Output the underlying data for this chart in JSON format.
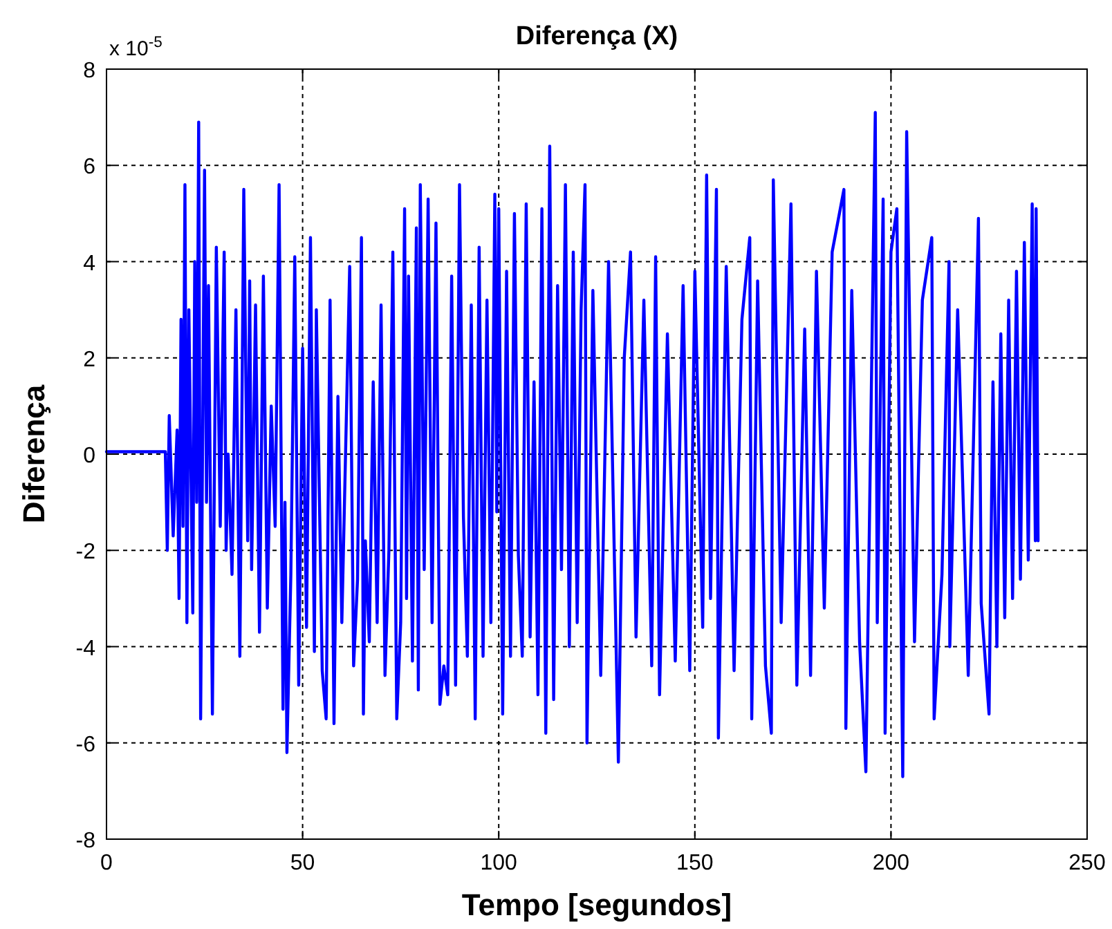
{
  "chart_data": {
    "type": "line",
    "title": "Diferença (X)",
    "xlabel": "Tempo [segundos]",
    "ylabel": "Diferença",
    "annotations": [
      "x 10$^{-5}$"
    ],
    "xlim": [
      0,
      250
    ],
    "xticks": [
      0,
      50,
      100,
      150,
      200,
      250
    ],
    "ylim": [
      -8,
      8
    ],
    "yticks": [
      -8,
      -6,
      -4,
      -2,
      0,
      2,
      4,
      6,
      8
    ],
    "grid": true,
    "marker": "none",
    "line_style": "solid",
    "series": [
      {
        "color": "#0000ff",
        "x": [
          0,
          15,
          15.5,
          16,
          17,
          18,
          18.5,
          19,
          19.5,
          20,
          20.5,
          21,
          22,
          22.5,
          23,
          23.5,
          24,
          25,
          25.5,
          26,
          27,
          28,
          29,
          30,
          30.5,
          31,
          32,
          33,
          34,
          35,
          36,
          36.5,
          37,
          38,
          39,
          40,
          41,
          42,
          43,
          44,
          45,
          45.5,
          46,
          47,
          48,
          49,
          50,
          51,
          52,
          53,
          53.5,
          55,
          56,
          57,
          58,
          59,
          60,
          61,
          62,
          63,
          64,
          65,
          65.5,
          66,
          67,
          68,
          69,
          70,
          71,
          72,
          73,
          73.5,
          74,
          75,
          76,
          76.5,
          77,
          78,
          79,
          79.5,
          80,
          81,
          82,
          83,
          84,
          85,
          86,
          87,
          88,
          89,
          90,
          91,
          92,
          93,
          94,
          95,
          96,
          97,
          98,
          99,
          99.5,
          100,
          101,
          102,
          103,
          104,
          105,
          106,
          107,
          108,
          109,
          110,
          111,
          112,
          113,
          114,
          115,
          116,
          117,
          118,
          119,
          120,
          121,
          122,
          122.5,
          124,
          126,
          128,
          130.5,
          132,
          133.6,
          135,
          137,
          139,
          140,
          141,
          143,
          145,
          147,
          148.7,
          150,
          152,
          153,
          154,
          155.5,
          156,
          158,
          160,
          162,
          164,
          164.5,
          166,
          168,
          169.5,
          170,
          172,
          174.5,
          176,
          178,
          179.5,
          181,
          183,
          185,
          188,
          188.5,
          190,
          192,
          193.6,
          196,
          196.5,
          198,
          198.5,
          200,
          201.5,
          203,
          204,
          206,
          208,
          210.4,
          211,
          213,
          214.8,
          215,
          217,
          219.7,
          222.3,
          223,
          225,
          226,
          227,
          228,
          229,
          230,
          231,
          232,
          233,
          234,
          235,
          236,
          236.8,
          237,
          237.5
        ],
        "values": [
          0.05,
          0.05,
          -2,
          0.8,
          -1.7,
          0.5,
          -3,
          2.8,
          -1.5,
          5.6,
          -3.5,
          3,
          -3.3,
          4,
          -1,
          6.9,
          -5.5,
          5.9,
          -1,
          3.5,
          -5.4,
          4.3,
          -1.5,
          4.2,
          -2,
          0,
          -2.5,
          3,
          -4.2,
          5.5,
          -1.8,
          3.6,
          -2.4,
          3.1,
          -3.7,
          3.7,
          -3.2,
          1,
          -1.5,
          5.6,
          -5.3,
          -1,
          -6.2,
          -2.5,
          4.1,
          -4.8,
          2.2,
          -3.6,
          4.5,
          -4.1,
          3,
          -4.5,
          -5.5,
          3.2,
          -5.6,
          1.2,
          -3.5,
          0.2,
          3.9,
          -4.4,
          -2.6,
          4.5,
          -5.4,
          -1.8,
          -3.9,
          1.5,
          -3.5,
          3.1,
          -4.6,
          -2,
          4.2,
          -1,
          -5.5,
          -3.5,
          5.1,
          -3,
          3.7,
          -4.3,
          4.7,
          -4.9,
          5.6,
          -2.4,
          5.3,
          -3.5,
          4.8,
          -5.2,
          -4.4,
          -5,
          3.7,
          -4.8,
          5.6,
          -1.3,
          -4.2,
          3.1,
          -5.5,
          4.3,
          -4.2,
          3.2,
          -3.5,
          5.4,
          -1.2,
          5.1,
          -5.4,
          3.8,
          -4.2,
          5,
          -2.1,
          -4.2,
          5.2,
          -3.8,
          1.5,
          -5,
          5.1,
          -5.8,
          6.4,
          -5.1,
          3.5,
          -2.4,
          5.6,
          -4,
          4.2,
          -3.5,
          3,
          5.6,
          -6,
          3.4,
          -4.6,
          4,
          -6.4,
          2,
          4.2,
          -3.8,
          3.2,
          -4.4,
          4.1,
          -5,
          2.5,
          -4.3,
          3.5,
          -4.5,
          3.8,
          -3.6,
          5.8,
          -3,
          5.5,
          -5.9,
          3.9,
          -4.5,
          2.8,
          4.5,
          -5.5,
          3.6,
          -4.4,
          -5.8,
          5.7,
          -3.5,
          5.2,
          -4.8,
          2.6,
          -4.6,
          3.8,
          -3.2,
          4.2,
          5.5,
          -5.7,
          3.4,
          -3.9,
          -6.6,
          7.1,
          -3.5,
          5.3,
          -5.8,
          4.2,
          5.1,
          -6.7,
          6.7,
          -3.9,
          3.2,
          4.5,
          -5.5,
          -2.5,
          4,
          -4,
          3,
          -4.6,
          4.9,
          -3.1,
          -5.4,
          1.5,
          -4,
          2.5,
          -3.4,
          3.2,
          -3,
          3.8,
          -2.6,
          4.4,
          -2.2,
          5.2,
          -1.8,
          5.1,
          -1.8
        ]
      }
    ]
  }
}
